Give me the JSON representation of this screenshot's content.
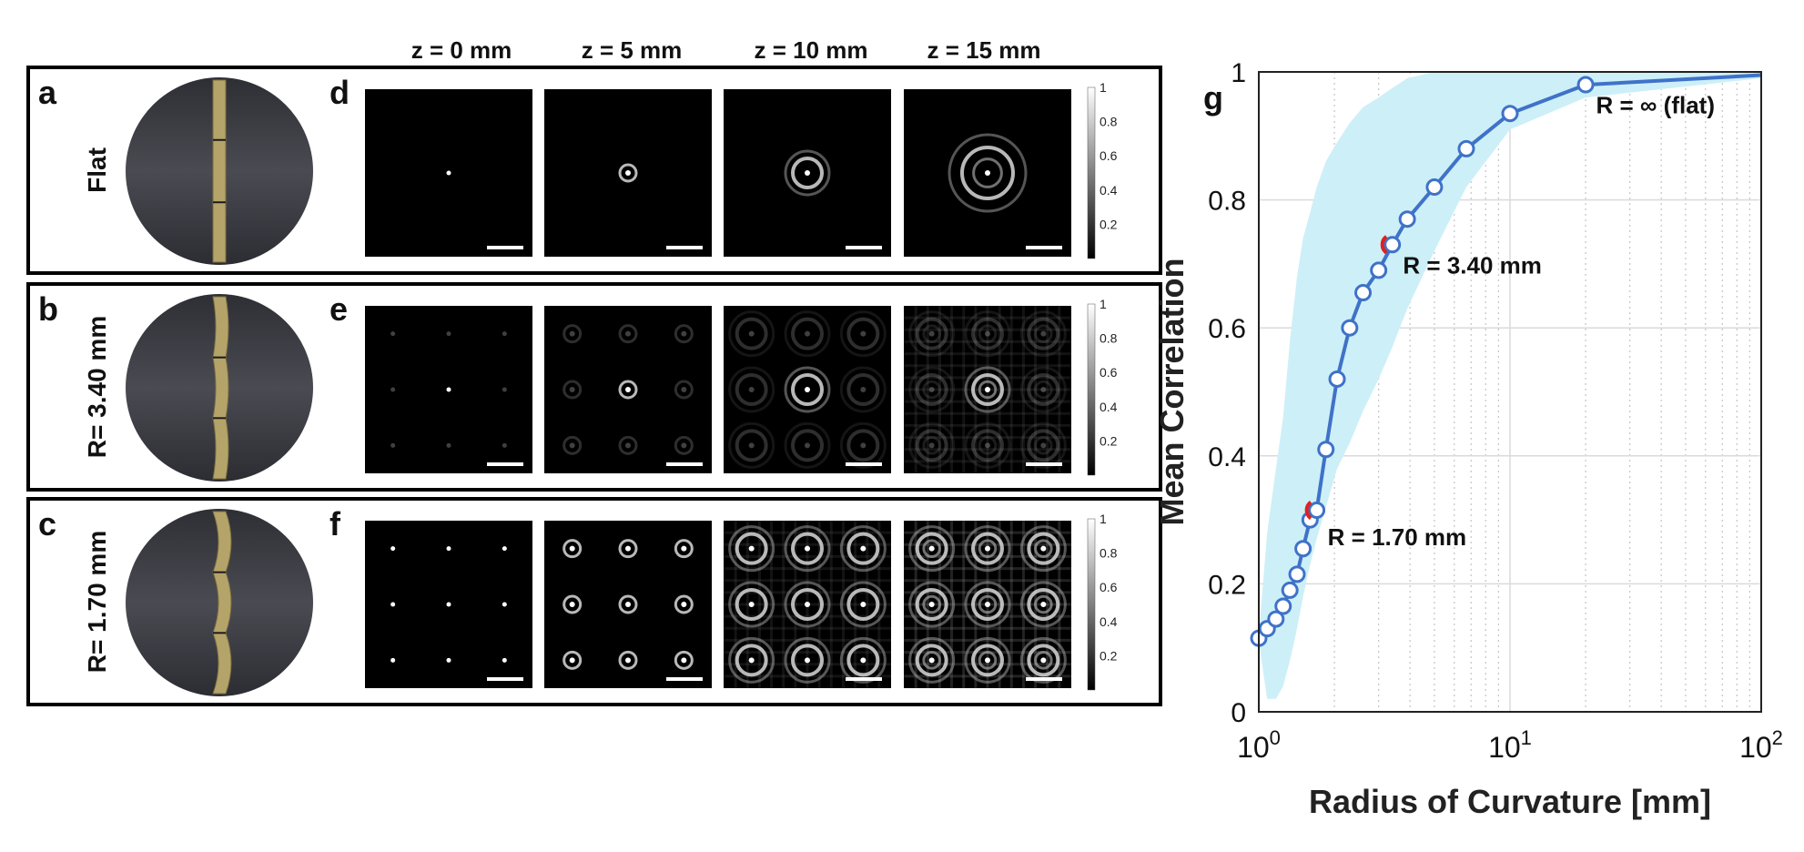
{
  "panels": {
    "letters": [
      "a",
      "b",
      "c",
      "d",
      "e",
      "f",
      "g"
    ],
    "rows": [
      {
        "letter": "a",
        "label": "Flat",
        "psf_letter": "d",
        "grid": 1
      },
      {
        "letter": "b",
        "label": "R= 3.40 mm",
        "psf_letter": "e",
        "grid": 3,
        "dim_off_center": true
      },
      {
        "letter": "c",
        "label": "R= 1.70 mm",
        "psf_letter": "f",
        "grid": 3
      }
    ],
    "columns": [
      "z = 0 mm",
      "z = 5 mm",
      "z = 10 mm",
      "z = 15 mm"
    ],
    "colorbar_ticks": [
      "1",
      "0.8",
      "0.6",
      "0.4",
      "0.2"
    ],
    "colors": {
      "bead": "#b5a46a",
      "sphere": "#3f4047",
      "frame": "#000000"
    }
  },
  "chart_data": {
    "type": "line",
    "panel_letter": "g",
    "xlabel": "Radius of Curvature [mm]",
    "ylabel": "Mean Correlation",
    "xscale": "log",
    "xlim": [
      1,
      100
    ],
    "ylim": [
      0,
      1
    ],
    "xticks": [
      {
        "base": "10",
        "exp": "0"
      },
      {
        "base": "10",
        "exp": "1"
      },
      {
        "base": "10",
        "exp": "2"
      }
    ],
    "yticks": [
      "0",
      "0.2",
      "0.4",
      "0.6",
      "0.8",
      "1"
    ],
    "grid": true,
    "line_color": "#3f72c8",
    "band_color": "#cdeff8",
    "highlight_color": "#e02020",
    "x": [
      1.0,
      1.08,
      1.17,
      1.25,
      1.33,
      1.42,
      1.5,
      1.6,
      1.7,
      1.85,
      2.05,
      2.3,
      2.6,
      3.0,
      3.4,
      3.9,
      5.0,
      6.7,
      10.0,
      20.0,
      100.0
    ],
    "y": [
      0.115,
      0.13,
      0.145,
      0.165,
      0.19,
      0.215,
      0.255,
      0.3,
      0.315,
      0.41,
      0.52,
      0.6,
      0.655,
      0.69,
      0.73,
      0.77,
      0.82,
      0.88,
      0.935,
      0.98,
      0.995
    ],
    "band_upper": [
      0.12,
      0.28,
      0.38,
      0.46,
      0.58,
      0.68,
      0.74,
      0.78,
      0.82,
      0.86,
      0.89,
      0.92,
      0.945,
      0.96,
      0.975,
      0.99,
      1.0,
      1.0,
      1.0,
      1.0,
      1.0
    ],
    "band_lower": [
      0.11,
      0.02,
      0.02,
      0.04,
      0.08,
      0.13,
      0.18,
      0.23,
      0.27,
      0.32,
      0.38,
      0.42,
      0.47,
      0.52,
      0.57,
      0.63,
      0.72,
      0.82,
      0.91,
      0.96,
      0.99
    ],
    "highlights": [
      3.4,
      1.7
    ],
    "annotations": [
      {
        "text": "R = ∞ (flat)",
        "x": 22,
        "y": 0.935
      },
      {
        "text": "R = 3.40 mm",
        "x": 3.75,
        "y": 0.685
      },
      {
        "text": "R = 1.70 mm",
        "x": 1.88,
        "y": 0.26
      }
    ]
  }
}
